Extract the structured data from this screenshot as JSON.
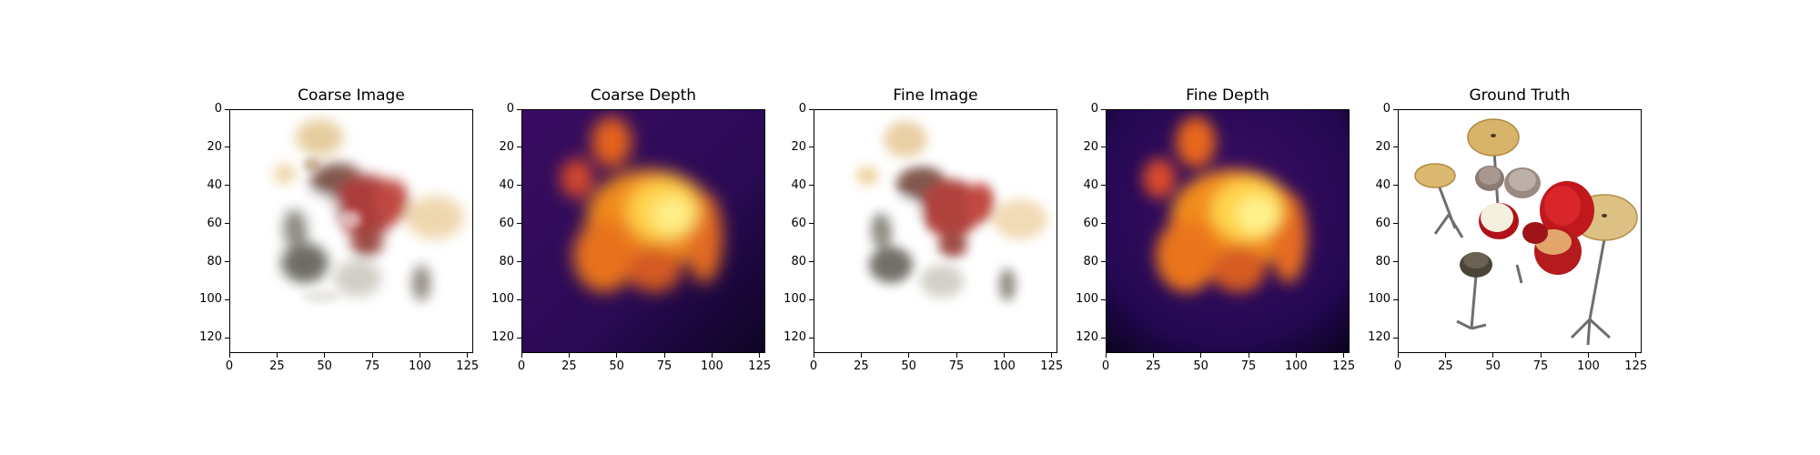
{
  "figure": {
    "panels": [
      {
        "title": "Coarse Image",
        "kind": "image-render"
      },
      {
        "title": "Coarse Depth",
        "kind": "depth-map"
      },
      {
        "title": "Fine Image",
        "kind": "image-render"
      },
      {
        "title": "Fine Depth",
        "kind": "depth-map"
      },
      {
        "title": "Ground Truth",
        "kind": "drum-kit"
      }
    ],
    "x_ticks": [
      "0",
      "25",
      "50",
      "75",
      "100",
      "125"
    ],
    "y_ticks": [
      "0",
      "20",
      "40",
      "60",
      "80",
      "100",
      "120"
    ],
    "x_tick_values": [
      0,
      25,
      50,
      75,
      100,
      125
    ],
    "y_tick_values": [
      0,
      20,
      40,
      60,
      80,
      100,
      120
    ],
    "pixel_extent": 128,
    "colors": {
      "depth_background": "#2a0a55",
      "depth_hot": "#ffd24a",
      "depth_mid": "#f08a1c",
      "drum_red": "#c0181c",
      "cymbal": "#d8b46a",
      "frame": "#000000"
    }
  }
}
